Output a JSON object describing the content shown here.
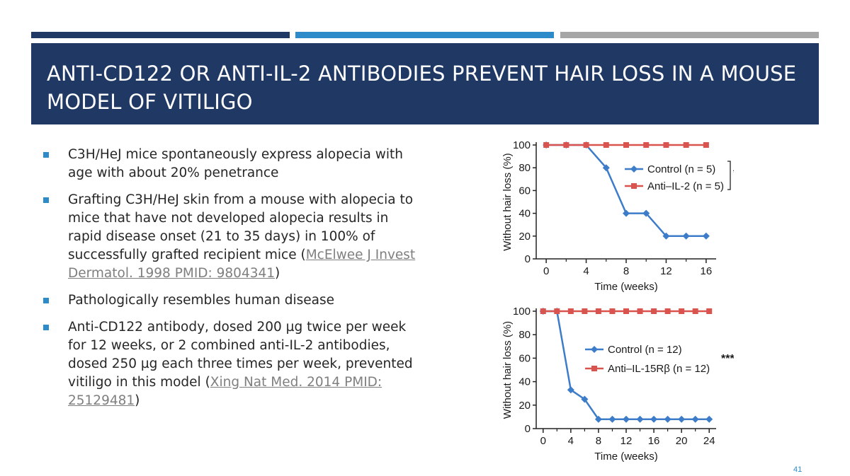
{
  "slide": {
    "title": "ANTI-CD122 OR ANTI-IL-2 ANTIBODIES PREVENT HAIR LOSS IN A MOUSE MODEL OF VITILIGO",
    "page_number": "41",
    "accent_colors": [
      "#1f3864",
      "#2e8bc9",
      "#a6a6a6"
    ],
    "bullets": [
      {
        "text": "C3H/HeJ mice spontaneously express alopecia with age with about 20% penetrance"
      },
      {
        "text": "Grafting C3H/HeJ skin from a mouse with alopecia to mice that have not developed alopecia results in rapid disease onset (21 to 35 days) in 100% of successfully grafted recipient mice (",
        "link": "McElwee J Invest Dermatol. 1998 PMID: 9804341",
        "after": ")"
      },
      {
        "text": "Pathologically resembles human disease"
      },
      {
        "text": "Anti-CD122 antibody, dosed 200 µg twice per week for 12 weeks, or 2 combined anti-IL-2 antibodies, dosed 250 µg each three times per week,  prevented vitiligo in this model (",
        "link": "Xing Nat Med. 2014 PMID: 25129481",
        "after": ")"
      }
    ]
  },
  "chart_data": [
    {
      "type": "line",
      "xlabel": "Time (weeks)",
      "ylabel": "Without hair loss (%)",
      "xlim": [
        -1,
        17
      ],
      "ylim": [
        0,
        100
      ],
      "xticks": [
        0,
        4,
        8,
        12,
        16
      ],
      "yticks": [
        0,
        20,
        40,
        60,
        80,
        100
      ],
      "significance": "*",
      "legend_position": "right",
      "series": [
        {
          "name": "Control (n = 5)",
          "color": "#3d7cc9",
          "marker": "diamond",
          "x": [
            0,
            2,
            4,
            6,
            8,
            10,
            12,
            14,
            16
          ],
          "y": [
            100,
            100,
            100,
            80,
            40,
            40,
            20,
            20,
            20
          ]
        },
        {
          "name": "Anti–IL-2 (n = 5)",
          "color": "#d9534f",
          "marker": "square",
          "x": [
            0,
            2,
            4,
            6,
            8,
            10,
            12,
            14,
            16
          ],
          "y": [
            100,
            100,
            100,
            100,
            100,
            100,
            100,
            100,
            100
          ]
        }
      ]
    },
    {
      "type": "line",
      "xlabel": "Time (weeks)",
      "ylabel": "Without hair loss (%)",
      "xlim": [
        -1,
        25
      ],
      "ylim": [
        0,
        100
      ],
      "xticks": [
        0,
        4,
        8,
        12,
        16,
        20,
        24
      ],
      "yticks": [
        0,
        20,
        40,
        60,
        80,
        100
      ],
      "significance": "***",
      "legend_position": "right",
      "series": [
        {
          "name": "Control (n = 12)",
          "color": "#3d7cc9",
          "marker": "diamond",
          "x": [
            0,
            2,
            4,
            6,
            8,
            10,
            12,
            14,
            16,
            18,
            20,
            22,
            24
          ],
          "y": [
            100,
            100,
            33,
            25,
            8,
            8,
            8,
            8,
            8,
            8,
            8,
            8,
            8
          ]
        },
        {
          "name": "Anti–IL-15Rβ (n = 12)",
          "color": "#d9534f",
          "marker": "square",
          "x": [
            0,
            2,
            4,
            6,
            8,
            10,
            12,
            14,
            16,
            18,
            20,
            22,
            24
          ],
          "y": [
            100,
            100,
            100,
            100,
            100,
            100,
            100,
            100,
            100,
            100,
            100,
            100,
            100
          ]
        }
      ]
    }
  ]
}
